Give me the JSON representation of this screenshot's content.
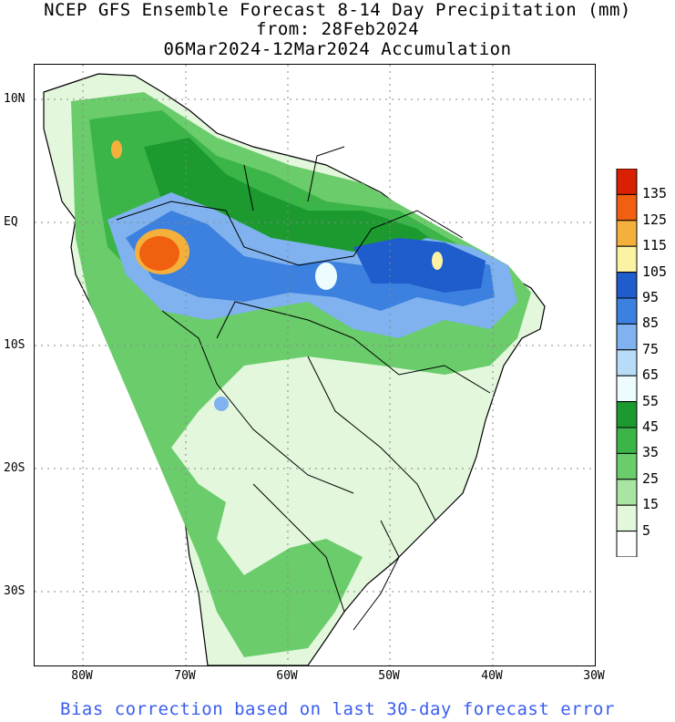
{
  "titles": {
    "line1": "NCEP GFS Ensemble Forecast 8-14 Day Precipitation (mm)",
    "line2": "from: 28Feb2024",
    "line3": "06Mar2024-12Mar2024 Accumulation"
  },
  "axes": {
    "lat_labels": [
      "10N",
      "EQ",
      "10S",
      "20S",
      "30S"
    ],
    "lon_labels": [
      "80W",
      "70W",
      "60W",
      "50W",
      "40W",
      "30W"
    ]
  },
  "colorbar": {
    "labels": [
      "135",
      "125",
      "115",
      "105",
      "95",
      "85",
      "75",
      "65",
      "55",
      "45",
      "35",
      "25",
      "15",
      "5"
    ],
    "colors": [
      "#d92000",
      "#f06010",
      "#f5b03c",
      "#fbf2a4",
      "#1f5ccc",
      "#3c80e0",
      "#7fb2ee",
      "#b8dcf8",
      "#ecfcff",
      "#1c9a30",
      "#3bb548",
      "#6acc6a",
      "#a9e4a2",
      "#e2f7dc",
      "#ffffff"
    ]
  },
  "colors": {
    "land_low": "#e2f7dc",
    "border": "#000000",
    "grid": "#888888",
    "footer": "#3a5df0"
  },
  "footer": "Bias correction based on last 30-day forecast error"
}
